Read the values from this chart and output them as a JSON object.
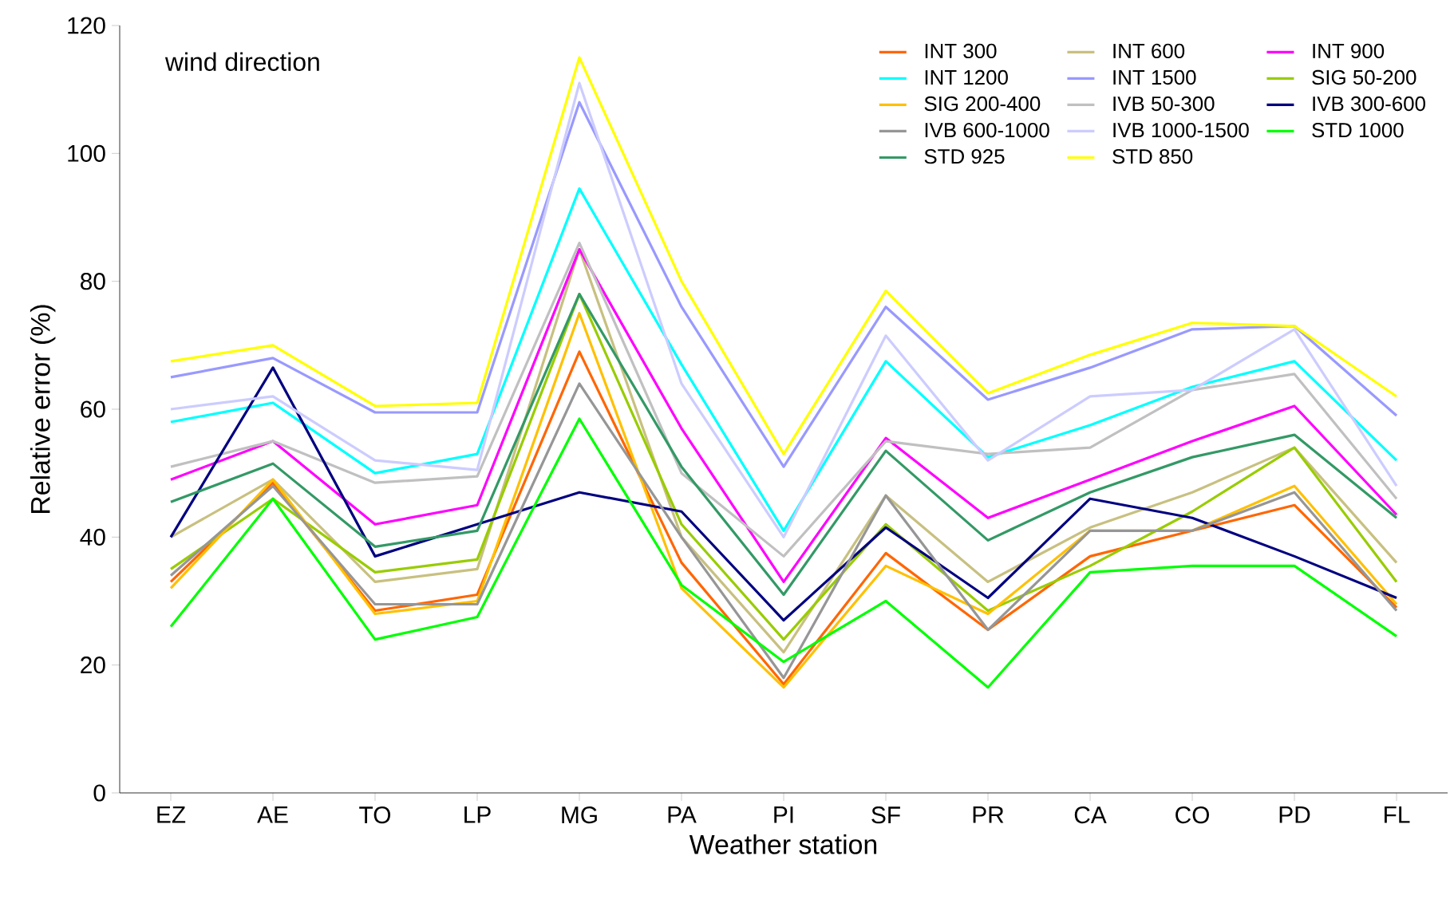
{
  "chart_data": {
    "type": "line",
    "title": "wind direction",
    "xlabel": "Weather station",
    "ylabel": "Relative error (%)",
    "categories": [
      "EZ",
      "AE",
      "TO",
      "LP",
      "MG",
      "PA",
      "PI",
      "SF",
      "PR",
      "CA",
      "CO",
      "PD",
      "FL"
    ],
    "ylim": [
      0,
      120
    ],
    "yticks": [
      0,
      20,
      40,
      60,
      80,
      100,
      120
    ],
    "grid": false,
    "legend": "top right",
    "marker": "none",
    "line_style": "solid",
    "series": [
      {
        "name": "INT 300",
        "color": "#ff6600",
        "values": [
          33,
          48.5,
          28.5,
          31,
          69,
          36,
          17,
          37.5,
          25.5,
          37,
          41,
          45,
          29
        ]
      },
      {
        "name": "INT 600",
        "color": "#c8c080",
        "values": [
          40,
          49,
          33,
          35,
          85,
          40,
          22,
          46.5,
          33,
          41.5,
          47,
          54,
          36
        ]
      },
      {
        "name": "INT 900",
        "color": "#ff00ff",
        "values": [
          49,
          55,
          42,
          45,
          85,
          57,
          33,
          55.5,
          43,
          49,
          55,
          60.5,
          43.5
        ]
      },
      {
        "name": "INT 1200",
        "color": "#00ffff",
        "values": [
          58,
          61,
          50,
          53,
          94.5,
          67,
          41,
          67.5,
          52.5,
          57.5,
          63.5,
          67.5,
          52
        ]
      },
      {
        "name": "INT 1500",
        "color": "#9999ff",
        "values": [
          65,
          68,
          59.5,
          59.5,
          108,
          76,
          51,
          76,
          61.5,
          66.5,
          72.5,
          73,
          59
        ]
      },
      {
        "name": "SIG 50-200",
        "color": "#99cc00",
        "values": [
          35,
          46,
          34.5,
          36.5,
          78,
          42,
          24,
          42,
          28.5,
          35.5,
          44,
          54,
          33
        ]
      },
      {
        "name": "SIG 200-400",
        "color": "#ffc000",
        "values": [
          32,
          49,
          28,
          30,
          75,
          32,
          16.5,
          35.5,
          28,
          41,
          41,
          48,
          29.5
        ]
      },
      {
        "name": "IVB 50-300",
        "color": "#c0c0c0",
        "values": [
          51,
          55,
          48.5,
          49.5,
          86,
          50,
          37,
          55,
          53,
          54,
          63,
          65.5,
          46
        ]
      },
      {
        "name": "IVB 300-600",
        "color": "#000080",
        "values": [
          40,
          66.5,
          37,
          42,
          47,
          44,
          27,
          41.5,
          30.5,
          46,
          43,
          37,
          30.5
        ]
      },
      {
        "name": "IVB 600-1000",
        "color": "#969696",
        "values": [
          34,
          48,
          29.5,
          29.5,
          64,
          40,
          18,
          46.5,
          25.5,
          41,
          41,
          47,
          28.5
        ]
      },
      {
        "name": "IVB 1000-1500",
        "color": "#ccccff",
        "values": [
          60,
          62,
          52,
          50.5,
          111,
          64,
          40,
          71.5,
          52,
          62,
          63,
          72.5,
          48
        ]
      },
      {
        "name": "STD 1000",
        "color": "#00ff00",
        "values": [
          26,
          46,
          24,
          27.5,
          58.5,
          32.5,
          20.5,
          30,
          16.5,
          34.5,
          35.5,
          35.5,
          24.5
        ]
      },
      {
        "name": "STD 925",
        "color": "#339966",
        "values": [
          45.5,
          51.5,
          38.5,
          41,
          78,
          51,
          31,
          53.5,
          39.5,
          47,
          52.5,
          56,
          43
        ]
      },
      {
        "name": "STD 850",
        "color": "#ffff00",
        "values": [
          67.5,
          70,
          60.5,
          61,
          115,
          80,
          53,
          78.5,
          62.5,
          68.5,
          73.5,
          73,
          62
        ]
      }
    ]
  }
}
